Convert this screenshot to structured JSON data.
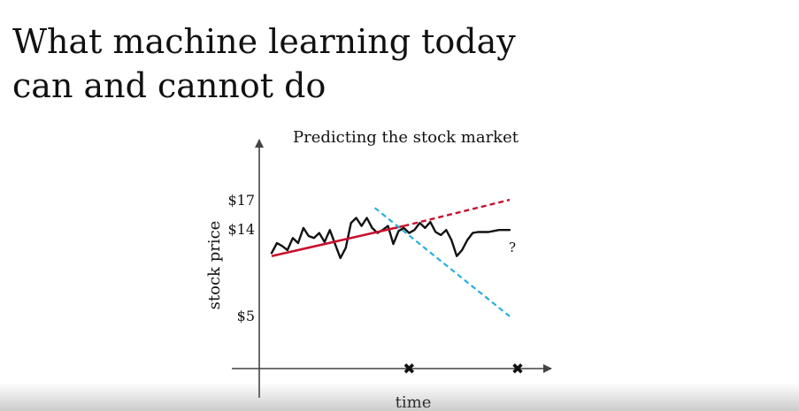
{
  "slide": {
    "title_line1": "What machine learning today",
    "title_line2": "can and cannot do"
  },
  "colors": {
    "series": "#111111",
    "red_trend": "#c8102e",
    "blue_trend": "#29aedc"
  },
  "chart_data": {
    "type": "line",
    "title": "Predicting the stock market",
    "xlabel": "time",
    "ylabel": "stock price",
    "x_ticks": [],
    "y_ticks": [
      {
        "value": 17,
        "label": "$17"
      },
      {
        "value": 14,
        "label": "$14"
      },
      {
        "value": 5,
        "label": "$5"
      }
    ],
    "ylim": [
      0,
      22
    ],
    "xlim": [
      0,
      100
    ],
    "grid": false,
    "series": [
      {
        "style": "solid",
        "color": "#111111",
        "x": [
          0,
          2,
          4,
          6,
          8,
          10,
          12,
          14,
          16,
          18,
          20,
          22,
          24,
          26,
          28,
          30,
          32,
          34,
          36,
          38,
          40,
          42,
          44,
          46,
          48,
          50,
          52,
          54,
          56,
          58,
          60,
          62,
          64,
          66,
          68,
          70,
          72,
          74,
          76,
          78,
          80,
          82,
          84,
          86,
          88,
          90
        ],
        "y": [
          11.5,
          12.5,
          12.2,
          11.8,
          13.0,
          12.5,
          14.0,
          13.2,
          13.0,
          13.5,
          12.6,
          13.8,
          12.4,
          11.0,
          12.0,
          14.5,
          15.0,
          14.2,
          15.0,
          14.0,
          13.5,
          13.8,
          14.2,
          12.4,
          13.7,
          14.0,
          13.5,
          13.8,
          14.5,
          14.0,
          14.6,
          13.6,
          13.3,
          13.8,
          12.8,
          11.2,
          11.8,
          12.8,
          13.5,
          13.6,
          13.6,
          13.6,
          13.7,
          13.8,
          13.8,
          13.8
        ]
      },
      {
        "style": "solid+dashed",
        "color": "#c8102e",
        "x": [
          0,
          50,
          90
        ],
        "y": [
          11.2,
          14.2,
          16.8
        ]
      },
      {
        "style": "dashed",
        "color": "#29aedc",
        "x": [
          39,
          90
        ],
        "y": [
          16.0,
          5.2
        ]
      }
    ],
    "x_markers": [
      {
        "x": 52,
        "symbol": "✖"
      },
      {
        "x": 93,
        "symbol": "✖"
      }
    ],
    "annotations": [
      {
        "text": "?",
        "x": 91,
        "y": 11.6
      }
    ]
  }
}
